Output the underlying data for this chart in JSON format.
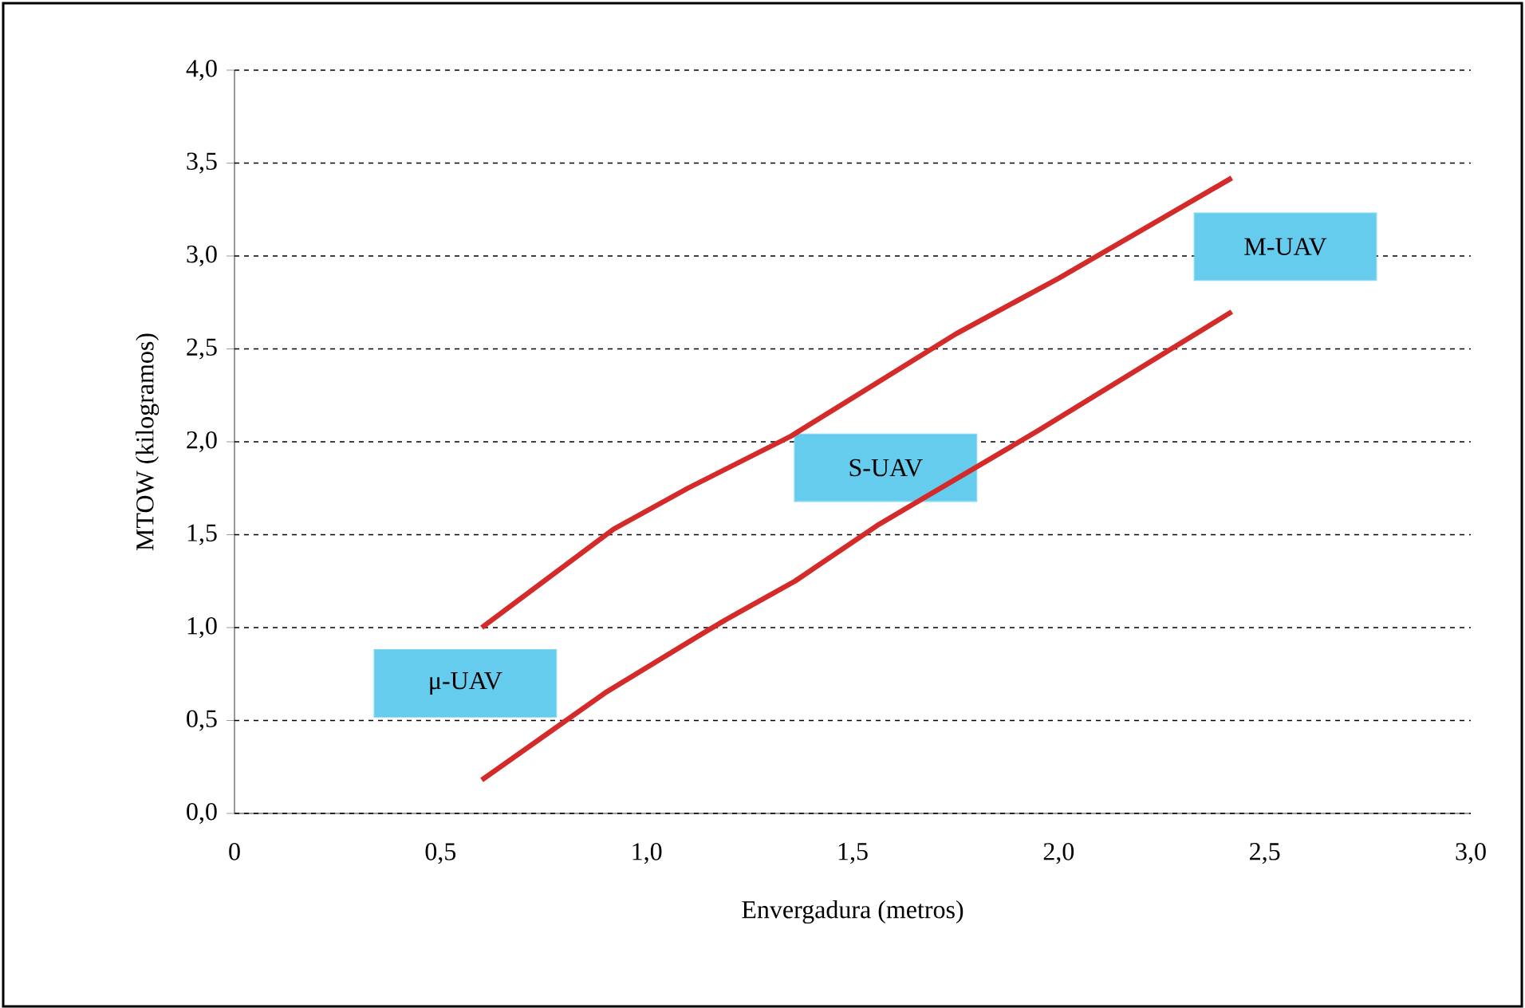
{
  "chart_data": {
    "type": "line",
    "xlabel": "Envergadura (metros)",
    "ylabel": "MTOW (kilogramos)",
    "annotations": [
      "μ-UAV",
      "S-UAV",
      "M-UAV"
    ],
    "series": [
      {
        "color": "#d42a2a",
        "x": [
          0.6,
          0.92,
          1.1,
          1.35,
          1.75,
          2.0,
          2.42
        ],
        "values": [
          1.0,
          1.53,
          1.75,
          2.03,
          2.58,
          2.88,
          3.42
        ]
      },
      {
        "color": "#d42a2a",
        "x": [
          0.6,
          0.9,
          1.13,
          1.19,
          1.36,
          1.56,
          1.95,
          2.42
        ],
        "values": [
          0.18,
          0.65,
          0.96,
          1.04,
          1.25,
          1.55,
          2.06,
          2.7
        ]
      }
    ],
    "xlim": [
      0,
      3.0
    ],
    "ylim": [
      0,
      4.0
    ],
    "xticks": [
      0,
      {
        "value": 0.5,
        "label": "0,5"
      },
      {
        "value": 1.0,
        "label": "1,0"
      },
      {
        "value": 1.5,
        "label": "1,5"
      },
      {
        "value": 2.0,
        "label": "2,0"
      },
      {
        "value": 2.5,
        "label": "2,5"
      },
      {
        "value": 3.0,
        "label": "3,0"
      }
    ],
    "yticks": [
      {
        "value": 0,
        "label": "0,0"
      },
      {
        "value": 0.5,
        "label": "0,5"
      },
      {
        "value": 1.0,
        "label": "1,0"
      },
      {
        "value": 1.5,
        "label": "1,5"
      },
      {
        "value": 2.0,
        "label": "2,0"
      },
      {
        "value": 2.5,
        "label": "2,5"
      },
      {
        "value": 3.0,
        "label": "3,0"
      },
      {
        "value": 3.5,
        "label": "3,5"
      },
      {
        "value": 4.0,
        "label": "4,0"
      }
    ],
    "grid": "y",
    "marker": "none",
    "line_style": "solid"
  }
}
